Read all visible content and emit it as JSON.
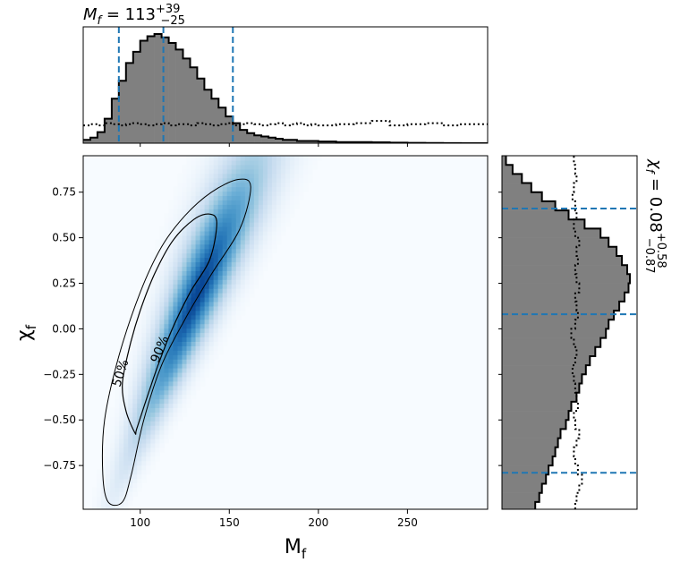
{
  "chart_data": {
    "type": "corner",
    "colors": {
      "density_colormap": "Blues",
      "histogram_fill": "#808080",
      "histogram_edge": "#000000",
      "quantile_lines": "#1f77b4"
    },
    "joint": {
      "type": "heatmap",
      "xlabel": "M",
      "xlabel_sub": "f",
      "ylabel": "χ",
      "ylabel_sub": "f",
      "xlim": [
        68,
        295
      ],
      "ylim": [
        -0.99,
        0.95
      ],
      "xticks": [
        100,
        150,
        200,
        250
      ],
      "xtick_labels": [
        "100",
        "150",
        "200",
        "250"
      ],
      "yticks": [
        0.75,
        0.5,
        0.25,
        0.0,
        -0.25,
        -0.5,
        -0.75
      ],
      "ytick_labels": [
        "0.75",
        "0.50",
        "0.25",
        "0.00",
        "−0.25",
        "−0.50",
        "−0.75"
      ],
      "contour_labels": [
        "50%",
        "90%"
      ],
      "contour_50": [
        [
          97,
          -0.57
        ],
        [
          92,
          -0.45
        ],
        [
          90,
          -0.3
        ],
        [
          94,
          -0.1
        ],
        [
          100,
          0.1
        ],
        [
          108,
          0.3
        ],
        [
          118,
          0.48
        ],
        [
          130,
          0.6
        ],
        [
          139,
          0.63
        ],
        [
          143,
          0.58
        ],
        [
          139,
          0.38
        ],
        [
          128,
          0.2
        ],
        [
          118,
          0.0
        ],
        [
          110,
          -0.2
        ],
        [
          103,
          -0.4
        ],
        [
          98,
          -0.55
        ]
      ],
      "contour_90": [
        [
          82,
          -0.95
        ],
        [
          79,
          -0.8
        ],
        [
          80,
          -0.5
        ],
        [
          88,
          -0.15
        ],
        [
          100,
          0.2
        ],
        [
          112,
          0.45
        ],
        [
          125,
          0.62
        ],
        [
          140,
          0.75
        ],
        [
          155,
          0.82
        ],
        [
          162,
          0.78
        ],
        [
          156,
          0.55
        ],
        [
          140,
          0.3
        ],
        [
          125,
          0.05
        ],
        [
          112,
          -0.2
        ],
        [
          102,
          -0.5
        ],
        [
          95,
          -0.8
        ],
        [
          90,
          -0.95
        ]
      ]
    },
    "top_histogram": {
      "type": "histogram",
      "title": "M",
      "title_sub": "f",
      "title_value": " = 113",
      "title_sup": "+39",
      "title_inf": "−25",
      "quantile_lines_x": [
        88,
        113,
        152
      ],
      "bin_edges": [
        68,
        72,
        76,
        80,
        84,
        88,
        92,
        96,
        100,
        104,
        108,
        112,
        116,
        120,
        124,
        128,
        132,
        136,
        140,
        144,
        148,
        152,
        156,
        160,
        164,
        168,
        172,
        176,
        180,
        184,
        188,
        192,
        196,
        200,
        210,
        220,
        230,
        240,
        250,
        260,
        270,
        280,
        295
      ],
      "density": [
        0.03,
        0.05,
        0.1,
        0.22,
        0.4,
        0.56,
        0.72,
        0.82,
        0.92,
        0.96,
        0.98,
        0.95,
        0.9,
        0.84,
        0.76,
        0.68,
        0.58,
        0.48,
        0.4,
        0.32,
        0.24,
        0.18,
        0.12,
        0.09,
        0.07,
        0.06,
        0.05,
        0.04,
        0.03,
        0.03,
        0.02,
        0.02,
        0.02,
        0.015,
        0.01,
        0.01,
        0.008,
        0.005,
        0.003,
        0.002,
        0.001,
        0.0
      ],
      "prior_density": [
        0.16,
        0.17,
        0.16,
        0.18,
        0.17,
        0.16,
        0.17,
        0.18,
        0.17,
        0.16,
        0.17,
        0.18,
        0.16,
        0.17,
        0.17,
        0.16,
        0.18,
        0.17,
        0.16,
        0.17,
        0.18,
        0.16,
        0.17,
        0.18,
        0.17,
        0.16,
        0.17,
        0.18,
        0.16,
        0.17,
        0.18,
        0.16,
        0.17,
        0.16,
        0.17,
        0.18,
        0.2,
        0.16,
        0.17,
        0.18,
        0.16,
        0.17
      ]
    },
    "right_histogram": {
      "type": "histogram",
      "orientation": "horizontal",
      "title": "χ",
      "title_sub": "f",
      "title_value": " = 0.08",
      "title_sup": "+0.58",
      "title_inf": "−0.87",
      "quantile_lines_y": [
        0.66,
        0.08,
        -0.79
      ],
      "bin_edges": [
        -0.99,
        -0.95,
        -0.9,
        -0.85,
        -0.8,
        -0.75,
        -0.7,
        -0.65,
        -0.6,
        -0.55,
        -0.5,
        -0.45,
        -0.4,
        -0.35,
        -0.3,
        -0.25,
        -0.2,
        -0.15,
        -0.1,
        -0.05,
        0.0,
        0.05,
        0.1,
        0.15,
        0.2,
        0.25,
        0.3,
        0.35,
        0.4,
        0.45,
        0.5,
        0.55,
        0.6,
        0.65,
        0.7,
        0.75,
        0.8,
        0.85,
        0.9,
        0.95
      ],
      "density": [
        0.25,
        0.28,
        0.3,
        0.33,
        0.35,
        0.38,
        0.4,
        0.42,
        0.44,
        0.48,
        0.5,
        0.52,
        0.56,
        0.58,
        0.6,
        0.63,
        0.66,
        0.7,
        0.74,
        0.78,
        0.8,
        0.84,
        0.88,
        0.92,
        0.95,
        0.96,
        0.94,
        0.9,
        0.86,
        0.8,
        0.74,
        0.62,
        0.5,
        0.4,
        0.3,
        0.22,
        0.15,
        0.08,
        0.03
      ],
      "prior_density": [
        0.55,
        0.56,
        0.58,
        0.6,
        0.57,
        0.55,
        0.54,
        0.56,
        0.58,
        0.55,
        0.54,
        0.57,
        0.56,
        0.55,
        0.54,
        0.53,
        0.55,
        0.56,
        0.54,
        0.52,
        0.55,
        0.57,
        0.56,
        0.55,
        0.58,
        0.56,
        0.55,
        0.57,
        0.56,
        0.58,
        0.55,
        0.54,
        0.56,
        0.55,
        0.53,
        0.54,
        0.56,
        0.55,
        0.54
      ]
    }
  }
}
